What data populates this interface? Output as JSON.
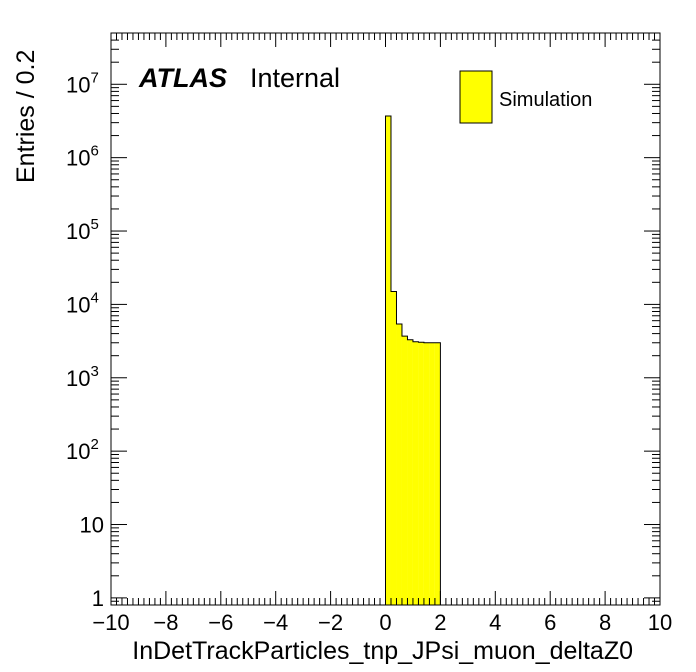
{
  "chart_data": {
    "type": "bar",
    "style": "histogram",
    "xlabel": "InDetTrackParticles_tnp_JPsi_muon_deltaZ0",
    "ylabel": "Entries / 0.2",
    "xlim": [
      -10,
      10
    ],
    "ylim": [
      0.8,
      50000000
    ],
    "yscale": "log",
    "x_ticks": [
      "−10",
      "−8",
      "−6",
      "−4",
      "−2",
      "0",
      "2",
      "4",
      "6",
      "8",
      "10"
    ],
    "y_ticks": [
      {
        "value": 1,
        "base": "1",
        "exp": ""
      },
      {
        "value": 10,
        "base": "10",
        "exp": ""
      },
      {
        "value": 100,
        "base": "10",
        "exp": "2"
      },
      {
        "value": 1000,
        "base": "10",
        "exp": "3"
      },
      {
        "value": 10000,
        "base": "10",
        "exp": "4"
      },
      {
        "value": 100000,
        "base": "10",
        "exp": "5"
      },
      {
        "value": 1000000,
        "base": "10",
        "exp": "6"
      },
      {
        "value": 10000000,
        "base": "10",
        "exp": "7"
      }
    ],
    "bin_width": 0.2,
    "bin_edges": [
      0,
      0.2,
      0.4,
      0.6,
      0.8,
      1.0,
      1.2,
      1.4,
      1.6,
      1.8,
      2.0
    ],
    "values": [
      3700000,
      15000,
      5400,
      3700,
      3300,
      3100,
      3050,
      3000,
      3000,
      3000
    ],
    "series": [
      {
        "name": "Simulation",
        "color": "#ffff00"
      }
    ],
    "legend_position": "top-right",
    "grid": false,
    "annotation": {
      "experiment": "ATLAS",
      "status": "Internal"
    }
  },
  "colors": {
    "fill": "#ffff00",
    "line": "#000000"
  }
}
